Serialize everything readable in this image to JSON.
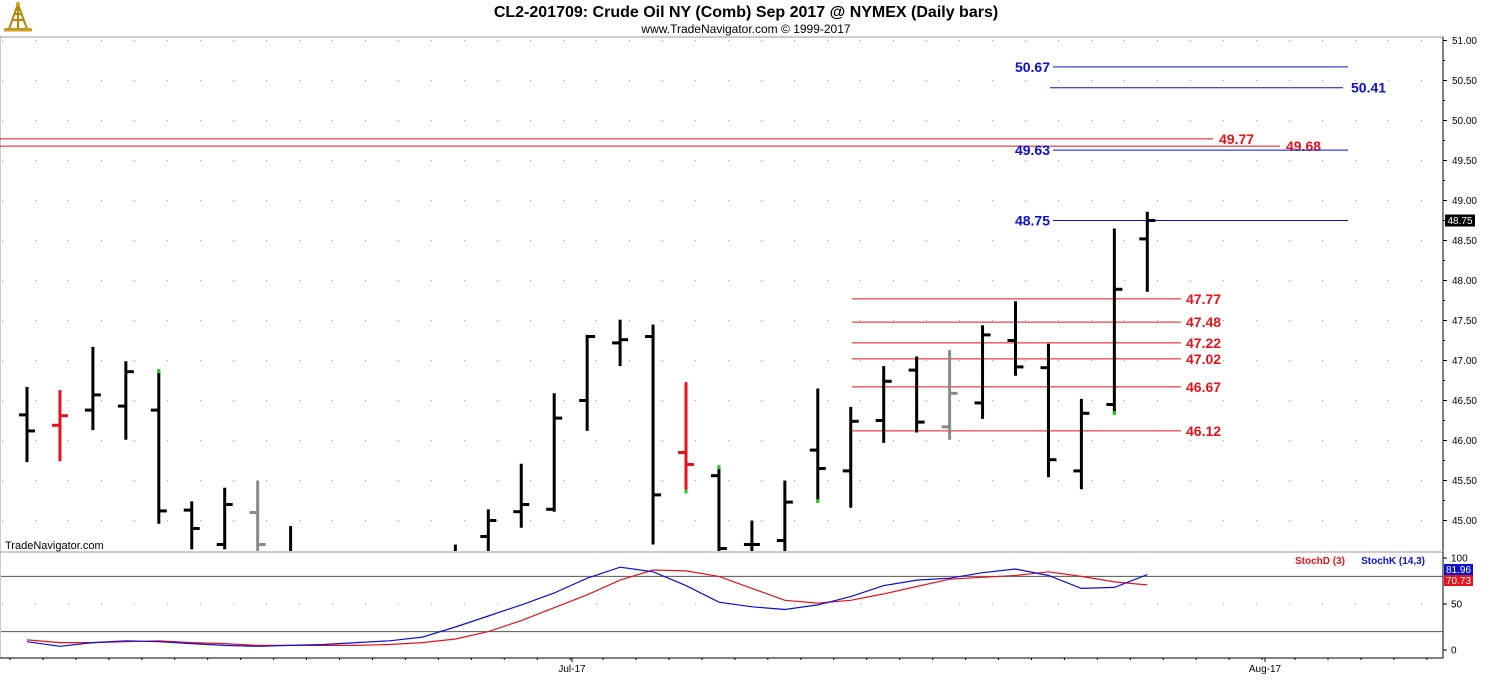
{
  "header": {
    "title": "CL2-201709:  Crude Oil NY (Comb) Sep 2017 @ NYMEX  (Daily bars)",
    "subtitle": "www.TradeNavigator.com © 1999-2017",
    "watermark": "TradeNavigator.com",
    "logo_icon": "oil-derrick-icon"
  },
  "colors": {
    "up_bar": "#000000",
    "down_bar_red": "#e8121a",
    "inside_bar_gray": "#8a8a8a",
    "marker_green": "#22cc22",
    "blue_level": "#0a0fd4",
    "red_level": "#e8121a",
    "grid_dot": "#9a9a9a",
    "badge_bg": "#000000"
  },
  "chart_data": [
    {
      "type": "ohlc",
      "title": "CL2-201709:  Crude Oil NY (Comb) Sep 2017 @ NYMEX  (Daily bars)",
      "ylim": [
        44.6,
        51.1
      ],
      "y_ticks": [
        "51.00",
        "50.50",
        "50.00",
        "49.50",
        "49.00",
        "48.50",
        "48.00",
        "47.50",
        "47.00",
        "46.50",
        "46.00",
        "45.50",
        "45.00"
      ],
      "x_ticks": [
        "Jul-17",
        "Aug-17"
      ],
      "last_price": "48.75",
      "bars": [
        {
          "i": 0,
          "o": 46.32,
          "h": 46.67,
          "l": 45.73,
          "c": 46.12,
          "color": "black"
        },
        {
          "i": 1,
          "o": 46.19,
          "h": 46.63,
          "l": 45.74,
          "c": 46.31,
          "color": "red"
        },
        {
          "i": 2,
          "o": 46.38,
          "h": 47.17,
          "l": 46.13,
          "c": 46.57,
          "color": "black"
        },
        {
          "i": 3,
          "o": 46.43,
          "h": 46.99,
          "l": 46.01,
          "c": 46.86,
          "color": "black"
        },
        {
          "i": 4,
          "o": 46.38,
          "h": 46.88,
          "l": 44.96,
          "c": 45.12,
          "color": "black",
          "marker": "high"
        },
        {
          "i": 5,
          "o": 45.13,
          "h": 45.24,
          "l": 44.64,
          "c": 44.9,
          "color": "black"
        },
        {
          "i": 6,
          "o": 44.7,
          "h": 45.41,
          "l": 44.64,
          "c": 45.2,
          "color": "black"
        },
        {
          "i": 7,
          "o": 45.1,
          "h": 45.5,
          "l": 44.62,
          "c": 44.7,
          "color": "gray"
        },
        {
          "i": 8,
          "o": 44.55,
          "h": 44.93,
          "l": 44.4,
          "c": 44.6,
          "color": "black"
        },
        {
          "i": 13,
          "o": 44.4,
          "h": 44.7,
          "l": 44.3,
          "c": 44.6,
          "color": "black"
        },
        {
          "i": 14,
          "o": 44.8,
          "h": 45.14,
          "l": 44.6,
          "c": 45.0,
          "color": "black"
        },
        {
          "i": 15,
          "o": 45.11,
          "h": 45.71,
          "l": 44.91,
          "c": 45.2,
          "color": "black"
        },
        {
          "i": 16,
          "o": 45.14,
          "h": 46.59,
          "l": 45.11,
          "c": 46.28,
          "color": "black"
        },
        {
          "i": 17,
          "o": 46.5,
          "h": 47.32,
          "l": 46.12,
          "c": 47.3,
          "color": "black"
        },
        {
          "i": 18,
          "o": 47.22,
          "h": 47.51,
          "l": 46.93,
          "c": 47.26,
          "color": "black"
        },
        {
          "i": 19,
          "o": 47.3,
          "h": 47.45,
          "l": 44.7,
          "c": 45.32,
          "color": "black"
        },
        {
          "i": 20,
          "o": 45.85,
          "h": 46.73,
          "l": 45.35,
          "c": 45.7,
          "color": "red",
          "marker": "low"
        },
        {
          "i": 21,
          "o": 45.56,
          "h": 45.68,
          "l": 44.6,
          "c": 44.65,
          "color": "black",
          "marker": "high"
        },
        {
          "i": 22,
          "o": 44.7,
          "h": 45.0,
          "l": 44.55,
          "c": 44.7,
          "color": "black"
        },
        {
          "i": 23,
          "o": 44.75,
          "h": 45.5,
          "l": 44.6,
          "c": 45.23,
          "color": "black"
        },
        {
          "i": 24,
          "o": 45.88,
          "h": 46.65,
          "l": 45.23,
          "c": 45.65,
          "color": "black",
          "marker": "low"
        },
        {
          "i": 25,
          "o": 45.62,
          "h": 46.42,
          "l": 45.16,
          "c": 46.24,
          "color": "black"
        },
        {
          "i": 26,
          "o": 46.25,
          "h": 46.93,
          "l": 45.97,
          "c": 46.74,
          "color": "black"
        },
        {
          "i": 27,
          "o": 46.88,
          "h": 47.05,
          "l": 46.1,
          "c": 46.23,
          "color": "black"
        },
        {
          "i": 28,
          "o": 46.17,
          "h": 47.13,
          "l": 46.01,
          "c": 46.59,
          "color": "gray"
        },
        {
          "i": 29,
          "o": 46.47,
          "h": 47.44,
          "l": 46.27,
          "c": 47.32,
          "color": "black"
        },
        {
          "i": 30,
          "o": 47.25,
          "h": 47.74,
          "l": 46.81,
          "c": 46.92,
          "color": "black"
        },
        {
          "i": 31,
          "o": 46.91,
          "h": 47.21,
          "l": 45.54,
          "c": 45.76,
          "color": "black"
        },
        {
          "i": 32,
          "o": 45.62,
          "h": 46.52,
          "l": 45.39,
          "c": 46.34,
          "color": "black"
        },
        {
          "i": 33,
          "o": 46.45,
          "h": 48.65,
          "l": 46.33,
          "c": 47.89,
          "color": "black",
          "marker": "low"
        },
        {
          "i": 34,
          "o": 48.52,
          "h": 48.86,
          "l": 47.86,
          "c": 48.75,
          "color": "black"
        }
      ],
      "levels": [
        {
          "value": 50.67,
          "label": "50.67",
          "color": "blue",
          "label_side": "left"
        },
        {
          "value": 50.41,
          "label": "50.41",
          "color": "blue",
          "label_side": "right"
        },
        {
          "value": 49.77,
          "label": "49.77",
          "color": "red",
          "label_side": "right",
          "full_width": true
        },
        {
          "value": 49.68,
          "label": "49.68",
          "color": "red",
          "label_side": "right",
          "full_width": true
        },
        {
          "value": 49.63,
          "label": "49.63",
          "color": "blue",
          "label_side": "left"
        },
        {
          "value": 48.75,
          "label": "48.75",
          "color": "blue",
          "label_side": "left"
        },
        {
          "value": 47.77,
          "label": "47.77",
          "color": "red",
          "label_side": "right"
        },
        {
          "value": 47.48,
          "label": "47.48",
          "color": "red",
          "label_side": "right"
        },
        {
          "value": 47.22,
          "label": "47.22",
          "color": "red",
          "label_side": "right"
        },
        {
          "value": 47.02,
          "label": "47.02",
          "color": "red",
          "label_side": "right"
        },
        {
          "value": 46.67,
          "label": "46.67",
          "color": "red",
          "label_side": "right"
        },
        {
          "value": 46.12,
          "label": "46.12",
          "color": "red",
          "label_side": "right"
        }
      ]
    },
    {
      "type": "line",
      "ylim": [
        -2,
        108
      ],
      "y_ticks": [
        "100",
        "50",
        "0"
      ],
      "ref_lines": [
        80,
        20
      ],
      "series": [
        {
          "name": "StochD (3)",
          "color": "#e8121a",
          "x": [
            0,
            1,
            2,
            3,
            4,
            5,
            6,
            7,
            8,
            9,
            10,
            11,
            12,
            13,
            14,
            15,
            16,
            17,
            18,
            19,
            20,
            21,
            22,
            23,
            24,
            25,
            26,
            27,
            28,
            29,
            30,
            31,
            32,
            33,
            34
          ],
          "y": [
            11,
            8,
            8,
            9,
            10,
            8,
            7,
            5,
            5,
            5,
            5,
            6,
            8,
            12,
            20,
            32,
            46,
            60,
            76,
            87,
            86,
            80,
            67,
            54,
            51,
            54,
            61,
            69,
            77,
            79,
            81,
            85,
            80,
            74,
            70.73
          ]
        },
        {
          "name": "StochK (14,3)",
          "color": "#0a0fd4",
          "x": [
            0,
            1,
            2,
            3,
            4,
            5,
            6,
            7,
            8,
            9,
            10,
            11,
            12,
            13,
            14,
            15,
            16,
            17,
            18,
            19,
            20,
            21,
            22,
            23,
            24,
            25,
            26,
            27,
            28,
            29,
            30,
            31,
            32,
            33,
            34
          ],
          "y": [
            9,
            4,
            8,
            10,
            9,
            7,
            5,
            4,
            5,
            6,
            8,
            10,
            14,
            25,
            37,
            49,
            62,
            78,
            90,
            85,
            70,
            52,
            47,
            44,
            49,
            58,
            70,
            76,
            78,
            84,
            88,
            81,
            67,
            68,
            81.96
          ]
        }
      ],
      "last_values": [
        "81.96",
        "70.73"
      ]
    }
  ]
}
